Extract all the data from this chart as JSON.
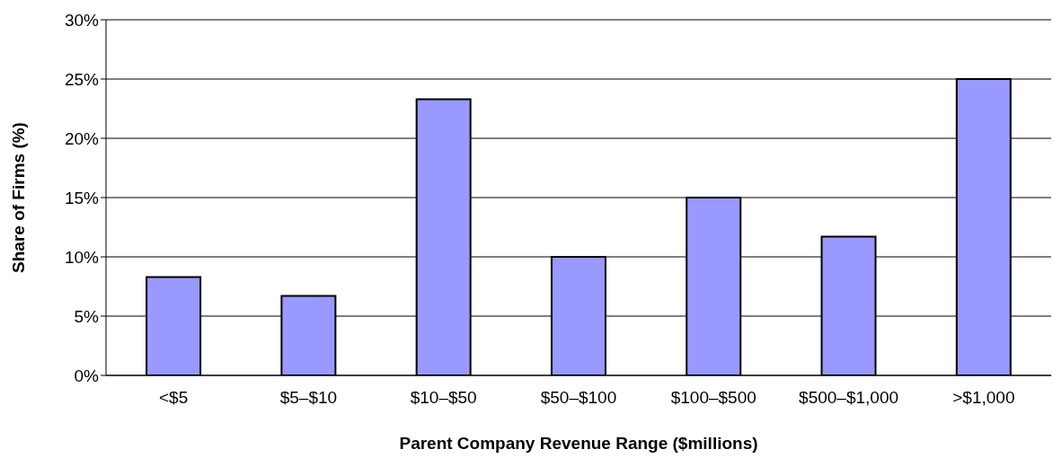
{
  "chart_data": {
    "type": "bar",
    "xlabel": "Parent Company Revenue Range ($millions)",
    "ylabel": "Share of Firms (%)",
    "categories": [
      "<$5",
      "$5–$10",
      "$10–$50",
      "$50–$100",
      "$100–$500",
      "$500–$1,000",
      ">$1,000"
    ],
    "values": [
      8.3,
      6.7,
      23.3,
      10,
      15,
      11.7,
      25
    ],
    "color": "#9999ff",
    "ylim": [
      0,
      30
    ],
    "yticks": [
      {
        "value": 0,
        "label": "0%"
      },
      {
        "value": 5,
        "label": "5%"
      },
      {
        "value": 10,
        "label": "10%"
      },
      {
        "value": 15,
        "label": "15%"
      },
      {
        "value": 20,
        "label": "20%"
      },
      {
        "value": 25,
        "label": "25%"
      },
      {
        "value": 30,
        "label": "30%"
      }
    ],
    "grid": "y"
  }
}
